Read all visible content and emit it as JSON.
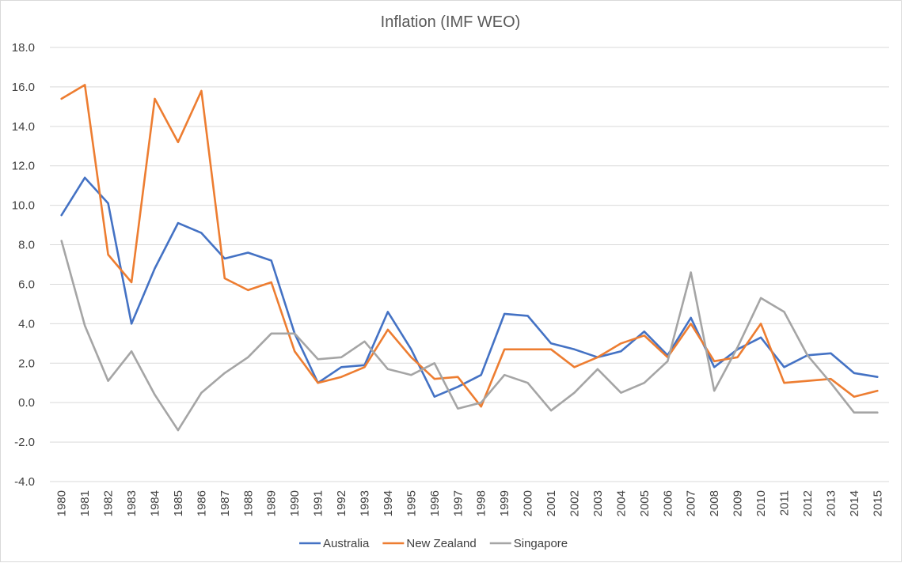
{
  "chart_data": {
    "type": "line",
    "title": "Inflation  (IMF WEO)",
    "xlabel": "",
    "ylabel": "",
    "ylim": [
      -4.0,
      18.0
    ],
    "ytick_step": 2.0,
    "grid": true,
    "legend_position": "bottom",
    "categories": [
      "1980",
      "1981",
      "1982",
      "1983",
      "1984",
      "1985",
      "1986",
      "1987",
      "1988",
      "1989",
      "1990",
      "1991",
      "1992",
      "1993",
      "1994",
      "1995",
      "1996",
      "1997",
      "1998",
      "1999",
      "2000",
      "2001",
      "2002",
      "2003",
      "2004",
      "2005",
      "2006",
      "2007",
      "2008",
      "2009",
      "2010",
      "2011",
      "2012",
      "2013",
      "2014",
      "2015"
    ],
    "series": [
      {
        "name": "Australia",
        "color": "#4472C4",
        "values": [
          9.5,
          11.4,
          10.1,
          4.0,
          6.8,
          9.1,
          8.6,
          7.3,
          7.6,
          7.2,
          3.5,
          1.0,
          1.8,
          1.9,
          4.6,
          2.7,
          0.3,
          0.8,
          1.4,
          4.5,
          4.4,
          3.0,
          2.7,
          2.3,
          2.6,
          3.6,
          2.4,
          4.3,
          1.8,
          2.7,
          3.3,
          1.8,
          2.4,
          2.5,
          1.5,
          1.3
        ]
      },
      {
        "name": "New Zealand",
        "color": "#ED7D31",
        "values": [
          15.4,
          16.1,
          7.5,
          6.1,
          15.4,
          13.2,
          15.8,
          6.3,
          5.7,
          6.1,
          2.6,
          1.0,
          1.3,
          1.8,
          3.7,
          2.3,
          1.2,
          1.3,
          -0.2,
          2.7,
          2.7,
          2.7,
          1.8,
          2.3,
          3.0,
          3.4,
          2.3,
          4.0,
          2.1,
          2.3,
          4.0,
          1.0,
          1.1,
          1.2,
          0.3,
          0.6
        ]
      },
      {
        "name": "Singapore",
        "color": "#A5A5A5",
        "values": [
          8.2,
          3.9,
          1.1,
          2.6,
          0.4,
          -1.4,
          0.5,
          1.5,
          2.3,
          3.5,
          3.5,
          2.2,
          2.3,
          3.1,
          1.7,
          1.4,
          2.0,
          -0.3,
          0.0,
          1.4,
          1.0,
          -0.4,
          0.5,
          1.7,
          0.5,
          1.0,
          2.1,
          6.6,
          0.6,
          2.8,
          5.3,
          4.6,
          2.4,
          1.0,
          -0.5,
          -0.5
        ]
      }
    ]
  }
}
